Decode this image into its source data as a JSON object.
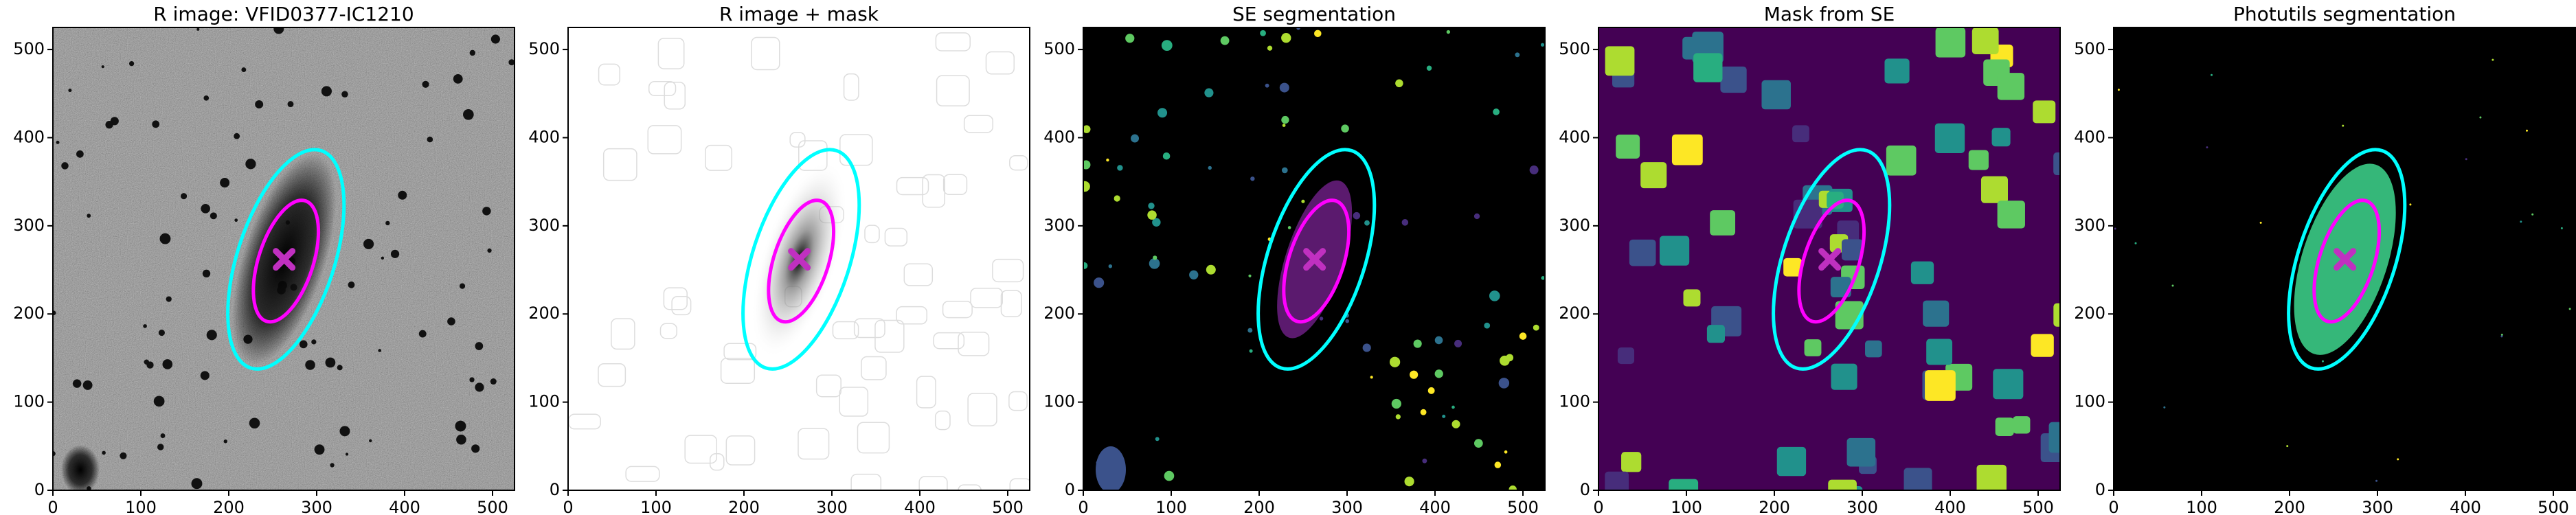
{
  "chart_data": [
    {
      "type": "image",
      "title": "R image: VFID0377-IC1210",
      "xlim": [
        0,
        525
      ],
      "ylim": [
        0,
        525
      ],
      "xticks": [
        0,
        100,
        200,
        300,
        400,
        500
      ],
      "yticks": [
        0,
        100,
        200,
        300,
        400,
        500
      ],
      "background": "#7a7a7a",
      "ellipses": [
        {
          "color": "#00ffff",
          "cx": 265,
          "cy": 262,
          "a": 130,
          "b": 55,
          "angle": 72
        },
        {
          "color": "#ff00ff",
          "cx": 265,
          "cy": 260,
          "a": 72,
          "b": 31,
          "angle": 72
        }
      ],
      "center": {
        "x": 263,
        "y": 262,
        "color": "#c030c0"
      }
    },
    {
      "type": "image",
      "title": "R image + mask",
      "xlim": [
        0,
        525
      ],
      "ylim": [
        0,
        525
      ],
      "xticks": [
        0,
        100,
        200,
        300,
        400,
        500
      ],
      "yticks": [
        0,
        100,
        200,
        300,
        400,
        500
      ],
      "background": "#ffffff",
      "ellipses": [
        {
          "color": "#00ffff",
          "cx": 265,
          "cy": 262,
          "a": 130,
          "b": 55,
          "angle": 72
        },
        {
          "color": "#ff00ff",
          "cx": 265,
          "cy": 260,
          "a": 72,
          "b": 31,
          "angle": 72
        }
      ],
      "center": {
        "x": 263,
        "y": 262,
        "color": "#c030c0"
      }
    },
    {
      "type": "image",
      "title": "SE segmentation",
      "xlim": [
        0,
        525
      ],
      "ylim": [
        0,
        525
      ],
      "xticks": [
        0,
        100,
        200,
        300,
        400,
        500
      ],
      "yticks": [
        0,
        100,
        200,
        300,
        400,
        500
      ],
      "background": "#000000",
      "ellipses": [
        {
          "color": "#00ffff",
          "cx": 265,
          "cy": 262,
          "a": 130,
          "b": 55,
          "angle": 72
        },
        {
          "color": "#ff00ff",
          "cx": 265,
          "cy": 260,
          "a": 72,
          "b": 31,
          "angle": 72
        }
      ],
      "center": {
        "x": 263,
        "y": 262,
        "color": "#c030c0"
      }
    },
    {
      "type": "image",
      "title": "Mask from SE",
      "xlim": [
        0,
        525
      ],
      "ylim": [
        0,
        525
      ],
      "xticks": [
        0,
        100,
        200,
        300,
        400,
        500
      ],
      "yticks": [
        0,
        100,
        200,
        300,
        400,
        500
      ],
      "background": "#440154",
      "ellipses": [
        {
          "color": "#00ffff",
          "cx": 265,
          "cy": 262,
          "a": 130,
          "b": 55,
          "angle": 72
        },
        {
          "color": "#ff00ff",
          "cx": 265,
          "cy": 260,
          "a": 72,
          "b": 31,
          "angle": 72
        }
      ],
      "center": {
        "x": 263,
        "y": 262,
        "color": "#c030c0"
      }
    },
    {
      "type": "image",
      "title": "Photutils segmentation",
      "xlim": [
        0,
        525
      ],
      "ylim": [
        0,
        525
      ],
      "xticks": [
        0,
        100,
        200,
        300,
        400,
        500
      ],
      "yticks": [
        0,
        100,
        200,
        300,
        400,
        500
      ],
      "background": "#000000",
      "ellipses": [
        {
          "color": "#00ffff",
          "cx": 265,
          "cy": 262,
          "a": 130,
          "b": 55,
          "angle": 72
        },
        {
          "color": "#ff00ff",
          "cx": 265,
          "cy": 260,
          "a": 72,
          "b": 31,
          "angle": 72
        }
      ],
      "center": {
        "x": 263,
        "y": 262,
        "color": "#c030c0"
      }
    }
  ]
}
